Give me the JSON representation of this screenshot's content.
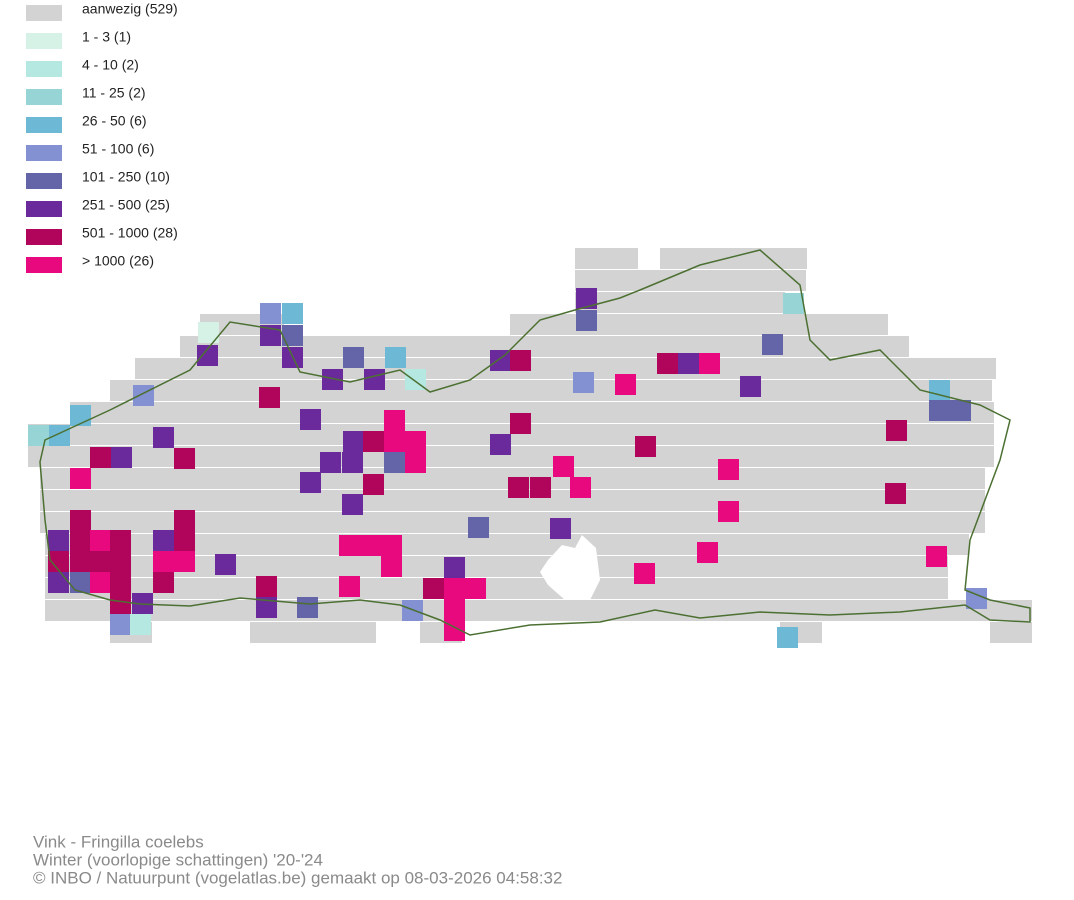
{
  "legend": [
    {
      "label": "aanwezig (529)",
      "color": "#d3d3d3"
    },
    {
      "label": "1 - 3 (1)",
      "color": "#d6f2e6"
    },
    {
      "label": "4 - 10 (2)",
      "color": "#b5e8e0"
    },
    {
      "label": "11 - 25 (2)",
      "color": "#97d4d6"
    },
    {
      "label": "26 - 50 (6)",
      "color": "#6db8d4"
    },
    {
      "label": "51 - 100 (6)",
      "color": "#8391d3"
    },
    {
      "label": "101 - 250 (10)",
      "color": "#6464a8"
    },
    {
      "label": "251 - 500 (25)",
      "color": "#6a2a9b"
    },
    {
      "label": "501 - 1000 (28)",
      "color": "#b0055a"
    },
    {
      "label": "> 1000 (26)",
      "color": "#e8097f"
    }
  ],
  "footer": [
    "Vink - Fringilla coelebs",
    "Winter (voorlopige schattingen) '20-'24",
    "© INBO / Natuurpunt (vogelatlas.be) gemaakt op 08-03-2026 04:58:32"
  ]
}
